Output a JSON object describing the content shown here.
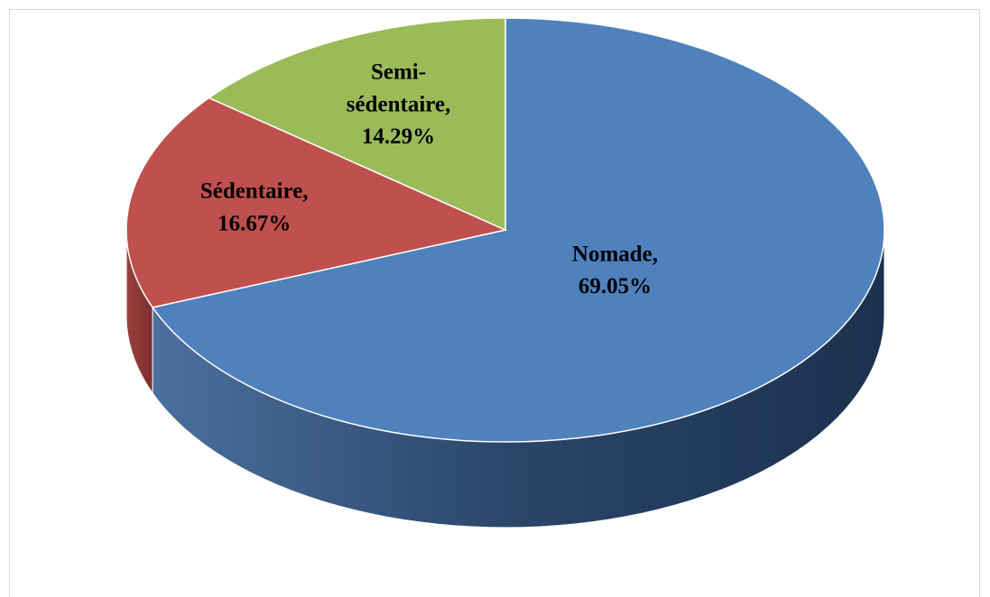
{
  "chart_data": {
    "type": "pie3d",
    "categories": [
      "Nomade,",
      "Sédentaire,",
      "Semi-sédentaire,"
    ],
    "values": [
      69.05,
      16.67,
      14.29
    ],
    "value_labels": [
      "69.05%",
      "16.67%",
      "14.29%"
    ],
    "colors": [
      "#4f81bd",
      "#c0504d",
      "#9bbb59"
    ]
  }
}
